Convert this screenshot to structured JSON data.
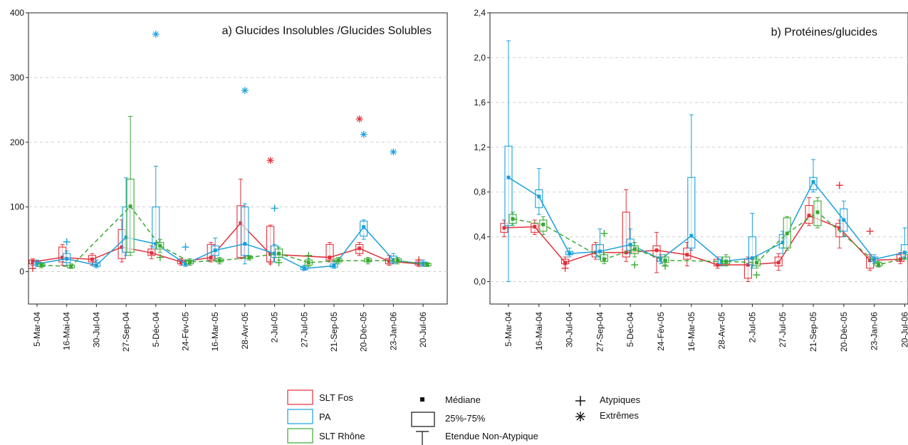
{
  "chart_data": [
    {
      "type": "box",
      "title": "a) Glucides Insolubles /Glucides Solubles",
      "ylim": [
        -50,
        400
      ],
      "yticks": [
        0,
        100,
        200,
        300,
        400
      ],
      "ytick_labels": [
        "0",
        "100",
        "200",
        "300",
        "400"
      ],
      "grid": true,
      "categories": [
        "5-Mar-04",
        "16-Mai-04",
        "30-Jul-04",
        "27-Sep-04",
        "5-Déc-04",
        "24-Fév-05",
        "16-Mar-05",
        "28-Avr-05",
        "2-Jul-05",
        "27-Jul-05",
        "21-Sep-05",
        "20-Déc-05",
        "23-Jan-06",
        "20-Jul-06"
      ],
      "series": [
        {
          "name": "SLT Fos",
          "color": "#e0303a",
          "dashed": false,
          "median": [
            15,
            22,
            19,
            38,
            29,
            15,
            22,
            75,
            27,
            null,
            22,
            36,
            16,
            12
          ],
          "q1": [
            12,
            15,
            15,
            20,
            25,
            12,
            18,
            22,
            15,
            null,
            18,
            28,
            12,
            10
          ],
          "q3": [
            18,
            38,
            25,
            65,
            35,
            18,
            42,
            102,
            70,
            null,
            42,
            42,
            20,
            15
          ],
          "wmin": [
            10,
            10,
            10,
            15,
            20,
            10,
            15,
            20,
            12,
            null,
            15,
            25,
            10,
            8
          ],
          "wmax": [
            20,
            42,
            28,
            80,
            40,
            20,
            45,
            143,
            72,
            null,
            45,
            45,
            25,
            18
          ],
          "outliers": [
            [
              0,
              5
            ],
            [
              8,
              15
            ],
            [
              13,
              18
            ]
          ],
          "extremes": [
            [
              8,
              172
            ],
            [
              11,
              236
            ]
          ]
        },
        {
          "name": "PA",
          "color": "#1aa0dc",
          "dashed": false,
          "median": [
            12,
            20,
            10,
            53,
            43,
            12,
            33,
            43,
            28,
            5,
            9,
            69,
            18,
            12
          ],
          "q1": [
            10,
            14,
            8,
            30,
            38,
            10,
            25,
            25,
            22,
            3,
            7,
            55,
            14,
            10
          ],
          "q3": [
            15,
            28,
            14,
            100,
            100,
            15,
            40,
            100,
            40,
            8,
            12,
            78,
            24,
            15
          ],
          "wmin": [
            8,
            10,
            6,
            25,
            35,
            8,
            20,
            12,
            15,
            2,
            5,
            50,
            12,
            8
          ],
          "wmax": [
            18,
            32,
            18,
            145,
            163,
            18,
            52,
            105,
            42,
            10,
            15,
            80,
            28,
            18
          ],
          "outliers": [
            [
              1,
              46
            ],
            [
              5,
              38
            ],
            [
              8,
              98
            ]
          ],
          "extremes": [
            [
              4,
              367
            ],
            [
              7,
              280
            ],
            [
              11,
              212
            ],
            [
              12,
              185
            ]
          ]
        },
        {
          "name": "SLT Rhône",
          "color": "#3aa832",
          "dashed": true,
          "median": [
            10,
            8,
            null,
            101,
            40,
            15,
            17,
            22,
            28,
            14,
            17,
            17,
            17,
            11
          ],
          "q1": [
            8,
            6,
            null,
            30,
            35,
            12,
            15,
            20,
            22,
            10,
            15,
            15,
            15,
            9
          ],
          "q3": [
            12,
            10,
            null,
            143,
            45,
            18,
            20,
            24,
            35,
            18,
            20,
            20,
            20,
            13
          ],
          "wmin": [
            6,
            5,
            null,
            25,
            30,
            10,
            12,
            18,
            18,
            8,
            12,
            12,
            12,
            8
          ],
          "wmax": [
            14,
            12,
            null,
            240,
            50,
            20,
            22,
            25,
            38,
            20,
            22,
            22,
            22,
            14
          ],
          "outliers": [
            [
              4,
              22
            ],
            [
              8,
              14
            ],
            [
              9,
              25
            ]
          ],
          "extremes": []
        }
      ]
    },
    {
      "type": "box",
      "title": "b) Protéines/glucides",
      "ylim": [
        -0.2,
        2.4
      ],
      "yticks": [
        0,
        0.4,
        0.8,
        1.2,
        1.6,
        2.0,
        2.4
      ],
      "ytick_labels": [
        "0,0",
        "0,4",
        "0,8",
        "1,2",
        "1,6",
        "2,0",
        "2,4"
      ],
      "grid": true,
      "categories": [
        "5-Mar-04",
        "16-Mai-04",
        "30-Jul-04",
        "27-Sep-04",
        "5-Déc-04",
        "24-Fév-05",
        "16-Mar-05",
        "28-Avr-05",
        "2-Jul-05",
        "27-Jul-05",
        "21-Sep-05",
        "20-Déc-05",
        "23-Jan-06",
        "20-Jul-06"
      ],
      "series": [
        {
          "name": "SLT Fos",
          "color": "#e0303a",
          "dashed": false,
          "median": [
            0.48,
            0.49,
            0.17,
            0.26,
            0.26,
            0.28,
            0.24,
            0.15,
            0.15,
            0.17,
            0.59,
            0.48,
            0.19,
            0.2
          ],
          "q1": [
            0.44,
            0.44,
            0.16,
            0.22,
            0.22,
            0.22,
            0.2,
            0.14,
            0.03,
            0.14,
            0.52,
            0.4,
            0.12,
            0.18
          ],
          "q3": [
            0.52,
            0.52,
            0.2,
            0.33,
            0.62,
            0.32,
            0.3,
            0.2,
            0.2,
            0.22,
            0.68,
            0.52,
            0.22,
            0.24
          ],
          "wmin": [
            0.4,
            0.42,
            0.15,
            0.2,
            0.18,
            0.08,
            0.14,
            0.12,
            0.0,
            0.1,
            0.5,
            0.3,
            0.1,
            0.16
          ],
          "wmax": [
            0.55,
            0.55,
            0.22,
            0.35,
            0.82,
            0.44,
            0.35,
            0.22,
            0.22,
            0.25,
            0.75,
            0.55,
            0.24,
            0.26
          ],
          "outliers": [
            [
              2,
              0.12
            ],
            [
              11,
              0.86
            ],
            [
              12,
              0.45
            ]
          ],
          "extremes": []
        },
        {
          "name": "PA",
          "color": "#1aa0dc",
          "dashed": false,
          "median": [
            0.93,
            0.76,
            0.25,
            0.27,
            0.33,
            0.2,
            0.41,
            0.18,
            0.21,
            0.35,
            0.89,
            0.55,
            0.2,
            0.26
          ],
          "q1": [
            0.5,
            0.66,
            0.24,
            0.22,
            0.28,
            0.18,
            0.3,
            0.16,
            0.15,
            0.3,
            0.82,
            0.45,
            0.18,
            0.22
          ],
          "q3": [
            1.21,
            0.82,
            0.27,
            0.33,
            0.38,
            0.22,
            0.93,
            0.2,
            0.4,
            0.42,
            0.93,
            0.65,
            0.22,
            0.33
          ],
          "wmin": [
            0.0,
            0.6,
            0.22,
            0.2,
            0.25,
            0.16,
            0.28,
            0.14,
            0.12,
            0.25,
            0.8,
            0.4,
            0.16,
            0.2
          ],
          "wmax": [
            2.15,
            1.01,
            0.3,
            0.47,
            0.47,
            0.24,
            1.49,
            0.22,
            0.61,
            0.45,
            1.09,
            0.72,
            0.24,
            0.48
          ],
          "outliers": [],
          "extremes": []
        },
        {
          "name": "SLT Rhône",
          "color": "#3aa832",
          "dashed": true,
          "median": [
            0.56,
            0.51,
            null,
            0.2,
            0.29,
            0.19,
            null,
            0.18,
            0.17,
            0.43,
            0.62,
            null,
            0.15,
            0.22
          ],
          "q1": [
            0.52,
            0.45,
            null,
            0.18,
            0.25,
            0.17,
            null,
            0.16,
            0.14,
            0.3,
            0.5,
            null,
            0.14,
            0.2
          ],
          "q3": [
            0.6,
            0.55,
            null,
            0.24,
            0.32,
            0.22,
            null,
            0.22,
            0.2,
            0.57,
            0.72,
            null,
            0.17,
            0.24
          ],
          "wmin": [
            0.5,
            0.42,
            null,
            0.16,
            0.22,
            0.15,
            null,
            0.14,
            0.12,
            0.28,
            0.48,
            null,
            0.13,
            0.18
          ],
          "wmax": [
            0.62,
            0.58,
            null,
            0.26,
            0.35,
            0.24,
            null,
            0.24,
            0.22,
            0.58,
            0.75,
            null,
            0.18,
            0.26
          ],
          "outliers": [
            [
              3,
              0.43
            ],
            [
              4,
              0.15
            ],
            [
              5,
              0.14
            ],
            [
              8,
              0.06
            ]
          ],
          "extremes": []
        }
      ]
    }
  ],
  "legend": {
    "series": [
      "SLT Fos",
      "PA",
      "SLT Rhône"
    ],
    "median_label": "Médiane",
    "box_label": "25%-75%",
    "whisker_label": "Etendue Non-Atypique",
    "outlier_label": "Atypiques",
    "extreme_label": "Extrêmes"
  }
}
